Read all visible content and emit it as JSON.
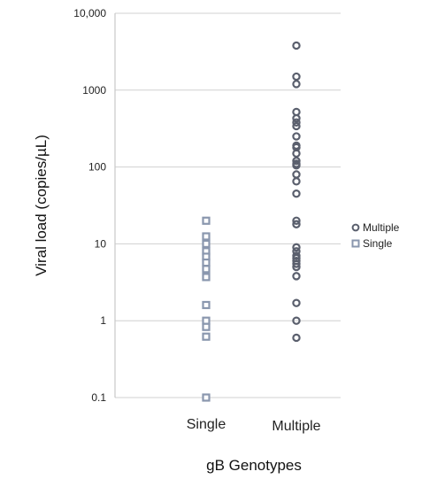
{
  "chart_data": {
    "type": "scatter",
    "xlabel": "gB Genotypes",
    "ylabel": "Viral load (copies/µL)",
    "y_scale": "log",
    "ylim": [
      0.1,
      10000
    ],
    "y_ticks": [
      "0.1",
      "1",
      "10",
      "100",
      "1000",
      "10,000"
    ],
    "y_tick_values": [
      0.1,
      1,
      10,
      100,
      1000,
      10000
    ],
    "categories": [
      "Single",
      "Multiple"
    ],
    "grid": true,
    "legend_position": "right",
    "series": [
      {
        "name": "Multiple",
        "category": "Multiple",
        "marker": "circle",
        "color": "#5a5f6d",
        "values": [
          3800,
          1500,
          1200,
          520,
          430,
          380,
          340,
          250,
          190,
          180,
          150,
          120,
          110,
          105,
          80,
          65,
          45,
          20,
          18,
          9,
          8,
          7,
          6.5,
          6,
          5.5,
          5,
          3.8,
          1.7,
          1.0,
          0.6
        ]
      },
      {
        "name": "Single",
        "category": "Single",
        "marker": "square",
        "color": "#8a97ae",
        "values": [
          20,
          12.5,
          10,
          8,
          6.8,
          5.7,
          4.7,
          3.7,
          1.6,
          1.0,
          0.83,
          0.62,
          0.1
        ]
      }
    ]
  }
}
